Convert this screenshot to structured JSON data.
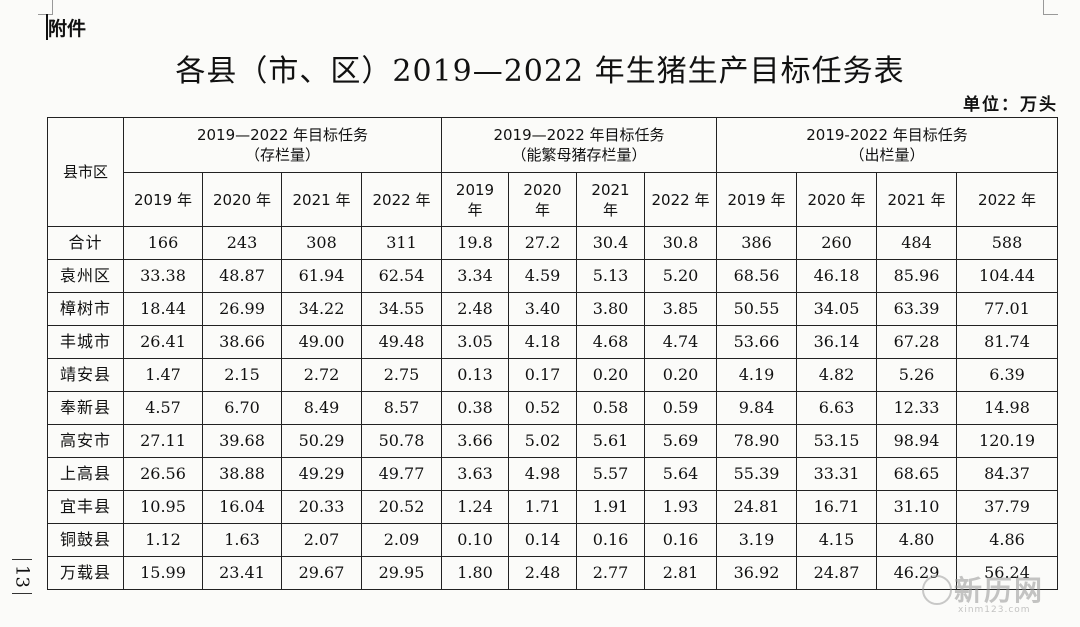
{
  "doc": {
    "attachment_label": "附件",
    "title": "各县（市、区）2019—2022 年生猪生产目标任务表",
    "unit": "单位：万头",
    "page_number": "13"
  },
  "table": {
    "row_header": "县市区",
    "groups": [
      {
        "line1": "2019—2022 年目标任务",
        "line2": "（存栏量）"
      },
      {
        "line1": "2019—2022 年目标任务",
        "line2": "（能繁母猪存栏量）"
      },
      {
        "line1": "2019-2022 年目标任务",
        "line2": "（出栏量）"
      }
    ],
    "years": [
      [
        "2019 年",
        "2020 年",
        "2021 年",
        "2022 年"
      ],
      [
        "2019\n年",
        "2020\n年",
        "2021\n年",
        "2022 年"
      ],
      [
        "2019 年",
        "2020 年",
        "2021 年",
        "2022 年"
      ]
    ],
    "rows": [
      {
        "name": "合计",
        "values": [
          "166",
          "243",
          "308",
          "311",
          "19.8",
          "27.2",
          "30.4",
          "30.8",
          "386",
          "260",
          "484",
          "588"
        ]
      },
      {
        "name": "袁州区",
        "values": [
          "33.38",
          "48.87",
          "61.94",
          "62.54",
          "3.34",
          "4.59",
          "5.13",
          "5.20",
          "68.56",
          "46.18",
          "85.96",
          "104.44"
        ]
      },
      {
        "name": "樟树市",
        "values": [
          "18.44",
          "26.99",
          "34.22",
          "34.55",
          "2.48",
          "3.40",
          "3.80",
          "3.85",
          "50.55",
          "34.05",
          "63.39",
          "77.01"
        ]
      },
      {
        "name": "丰城市",
        "values": [
          "26.41",
          "38.66",
          "49.00",
          "49.48",
          "3.05",
          "4.18",
          "4.68",
          "4.74",
          "53.66",
          "36.14",
          "67.28",
          "81.74"
        ]
      },
      {
        "name": "靖安县",
        "values": [
          "1.47",
          "2.15",
          "2.72",
          "2.75",
          "0.13",
          "0.17",
          "0.20",
          "0.20",
          "4.19",
          "4.82",
          "5.26",
          "6.39"
        ]
      },
      {
        "name": "奉新县",
        "values": [
          "4.57",
          "6.70",
          "8.49",
          "8.57",
          "0.38",
          "0.52",
          "0.58",
          "0.59",
          "9.84",
          "6.63",
          "12.33",
          "14.98"
        ]
      },
      {
        "name": "高安市",
        "values": [
          "27.11",
          "39.68",
          "50.29",
          "50.78",
          "3.66",
          "5.02",
          "5.61",
          "5.69",
          "78.90",
          "53.15",
          "98.94",
          "120.19"
        ]
      },
      {
        "name": "上高县",
        "values": [
          "26.56",
          "38.88",
          "49.29",
          "49.77",
          "3.63",
          "4.98",
          "5.57",
          "5.64",
          "55.39",
          "33.31",
          "68.65",
          "84.37"
        ]
      },
      {
        "name": "宜丰县",
        "values": [
          "10.95",
          "16.04",
          "20.33",
          "20.52",
          "1.24",
          "1.71",
          "1.91",
          "1.93",
          "24.81",
          "16.71",
          "31.10",
          "37.79"
        ]
      },
      {
        "name": "铜鼓县",
        "values": [
          "1.12",
          "1.63",
          "2.07",
          "2.09",
          "0.10",
          "0.14",
          "0.16",
          "0.16",
          "3.19",
          "4.15",
          "4.80",
          "4.86"
        ]
      },
      {
        "name": "万载县",
        "values": [
          "15.99",
          "23.41",
          "29.67",
          "29.95",
          "1.80",
          "2.48",
          "2.77",
          "2.81",
          "36.92",
          "24.87",
          "46.29",
          "56.24"
        ]
      }
    ]
  },
  "watermark": {
    "text": "新历网",
    "url": "xinm123.com"
  }
}
